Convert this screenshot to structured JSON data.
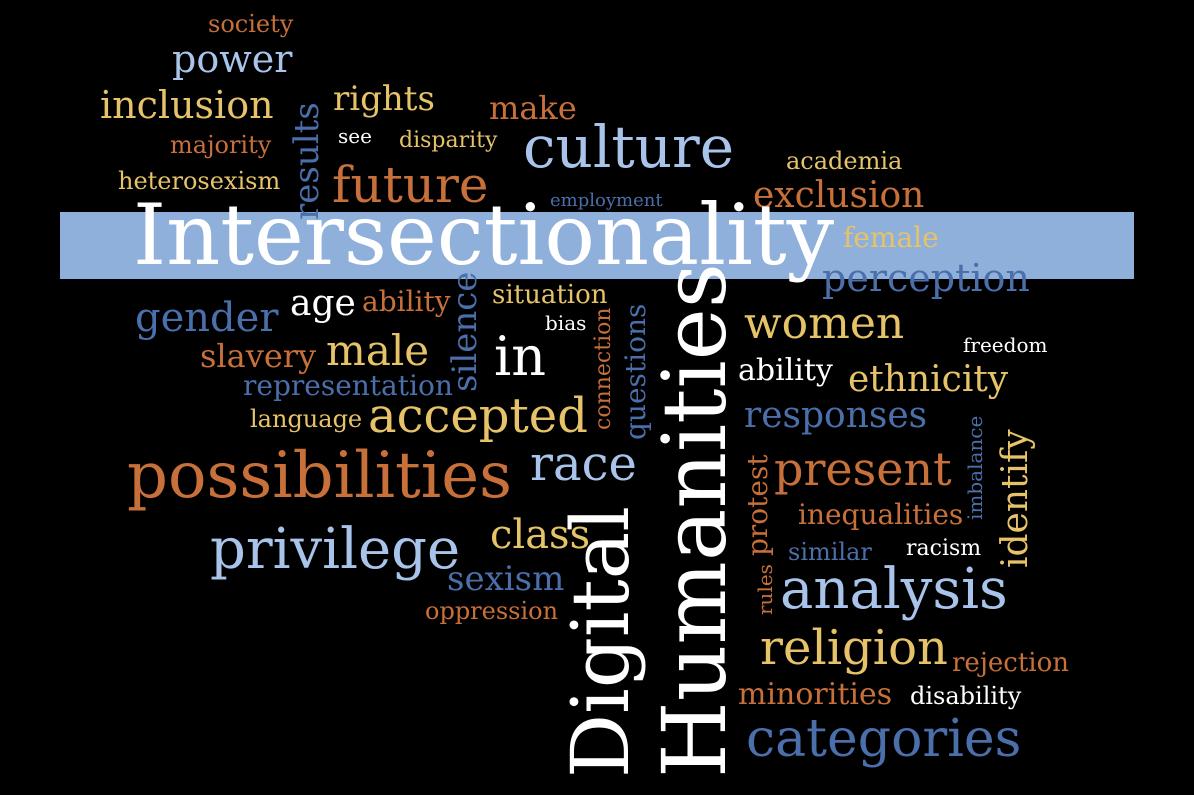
{
  "words": {
    "society": "society",
    "power": "power",
    "inclusion": "inclusion",
    "rights": "rights",
    "make": "make",
    "results": "results",
    "majority": "majority",
    "see": "see",
    "disparity": "disparity",
    "culture": "culture",
    "academia": "academia",
    "heterosexism": "heterosexism",
    "future": "future",
    "employment": "employment",
    "exclusion": "exclusion",
    "intersectionality": "Intersectionality",
    "female": "female",
    "perception": "perception",
    "gender": "gender",
    "age": "age",
    "ability_a": "ability",
    "silence": "silence",
    "situation": "situation",
    "bias": "bias",
    "connection": "connection",
    "questions": "questions",
    "women": "women",
    "slavery": "slavery",
    "male": "male",
    "in": "in",
    "freedom": "freedom",
    "ability_b": "ability",
    "ethnicity": "ethnicity",
    "representation": "representation",
    "language": "language",
    "accepted": "accepted",
    "responses": "responses",
    "possibilities": "possibilities",
    "race": "race",
    "imbalance": "imbalance",
    "identify": "identify",
    "present": "present",
    "protest": "protest",
    "inequalities": "inequalities",
    "privilege": "privilege",
    "class": "class",
    "similar": "similar",
    "racism": "racism",
    "digital": "Digital",
    "humanities": "Humanities",
    "sexism": "sexism",
    "rules": "rules",
    "analysis": "analysis",
    "oppression": "oppression",
    "religion": "religion",
    "rejection": "rejection",
    "minorities": "minorities",
    "disability": "disability",
    "categories": "categories"
  },
  "colors": {
    "background": "#000000",
    "band": "#8fb0db",
    "white": "#ffffff",
    "light_blue": "#a9c4ea",
    "dark_blue": "#4a6fab",
    "gold": "#e6c368",
    "orange": "#c8703a"
  }
}
